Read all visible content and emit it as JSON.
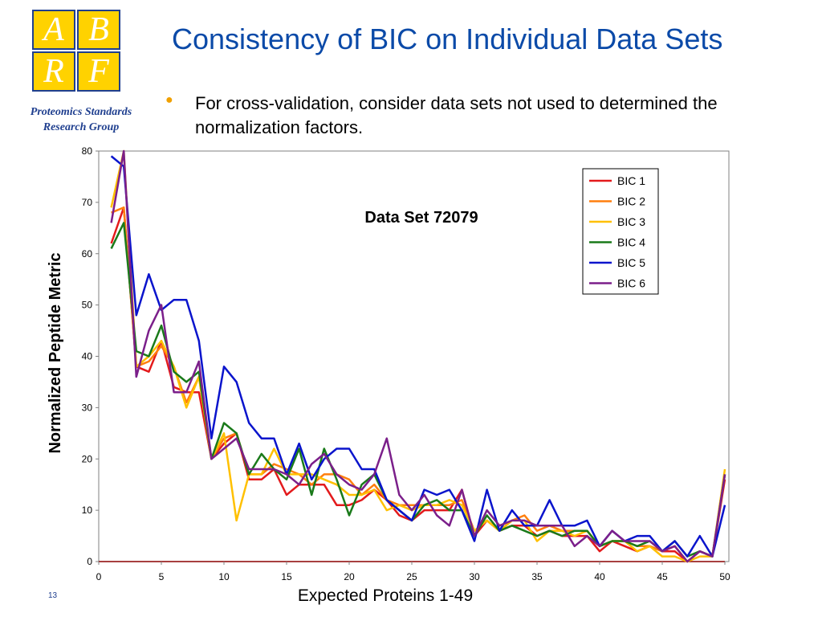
{
  "slide": {
    "title": "Consistency of BIC on Individual Data Sets",
    "bullet": "For cross-validation, consider data sets not used to determined the normalization factors.",
    "logo": {
      "letters": [
        "A",
        "B",
        "R",
        "F"
      ],
      "subtitle_line1": "Proteomics Standards",
      "subtitle_line2": "Research Group"
    },
    "slide_number": "13"
  },
  "chart_data": {
    "type": "line",
    "title": "Data Set 72079",
    "xlabel": "Expected Proteins 1-49",
    "ylabel": "Normalized Peptide Metric",
    "xlim": [
      0,
      50
    ],
    "ylim": [
      0,
      80
    ],
    "xticks": [
      0,
      5,
      10,
      15,
      20,
      25,
      30,
      35,
      40,
      45,
      50
    ],
    "yticks": [
      0,
      10,
      20,
      30,
      40,
      50,
      60,
      70,
      80
    ],
    "grid": false,
    "legend_position": "top-right",
    "x": [
      1,
      2,
      3,
      4,
      5,
      6,
      7,
      8,
      9,
      10,
      11,
      12,
      13,
      14,
      15,
      16,
      17,
      18,
      19,
      20,
      21,
      22,
      23,
      24,
      25,
      26,
      27,
      28,
      29,
      30,
      31,
      32,
      33,
      34,
      35,
      36,
      37,
      38,
      39,
      40,
      41,
      42,
      43,
      44,
      45,
      46,
      47,
      48,
      49,
      50
    ],
    "series": [
      {
        "name": "BIC 1",
        "color": "#e31a1c",
        "values": [
          62,
          69,
          38,
          37,
          43,
          34,
          33,
          33,
          20,
          23,
          25,
          16,
          16,
          18,
          13,
          15,
          15,
          15,
          11,
          11,
          12,
          14,
          12,
          9,
          8,
          10,
          10,
          10,
          14,
          5,
          8,
          6,
          7,
          7,
          5,
          6,
          5,
          5,
          5,
          2,
          4,
          3,
          2,
          3,
          2,
          2,
          0,
          2,
          1,
          16
        ]
      },
      {
        "name": "BIC 2",
        "color": "#ff7f0e",
        "values": [
          68,
          69,
          38,
          39,
          42,
          38,
          31,
          36,
          20,
          24,
          25,
          17,
          17,
          19,
          18,
          17,
          15,
          17,
          17,
          16,
          13,
          15,
          12,
          11,
          11,
          11,
          11,
          11,
          12,
          6,
          8,
          6,
          8,
          9,
          6,
          7,
          6,
          6,
          6,
          3,
          4,
          4,
          3,
          3,
          2,
          3,
          0,
          2,
          1,
          17
        ]
      },
      {
        "name": "BIC 3",
        "color": "#ffc000",
        "values": [
          69,
          80,
          38,
          40,
          43,
          38,
          30,
          36,
          20,
          25,
          8,
          17,
          17,
          22,
          17,
          17,
          17,
          16,
          15,
          13,
          13,
          14,
          10,
          11,
          10,
          11,
          11,
          12,
          11,
          6,
          8,
          6,
          8,
          8,
          4,
          6,
          6,
          5,
          6,
          3,
          4,
          4,
          2,
          3,
          1,
          1,
          0,
          1,
          1,
          18
        ]
      },
      {
        "name": "BIC 4",
        "color": "#1a7a1a",
        "values": [
          61,
          66,
          41,
          40,
          46,
          37,
          35,
          37,
          20,
          27,
          25,
          17,
          21,
          18,
          16,
          22,
          13,
          22,
          16,
          9,
          15,
          17,
          12,
          10,
          8,
          11,
          12,
          10,
          10,
          5,
          9,
          6,
          7,
          6,
          5,
          6,
          5,
          6,
          6,
          3,
          4,
          4,
          3,
          4,
          2,
          4,
          1,
          2,
          1,
          17
        ]
      },
      {
        "name": "BIC 5",
        "color": "#0a14cc",
        "values": [
          79,
          77,
          48,
          56,
          49,
          51,
          51,
          43,
          24,
          38,
          35,
          27,
          24,
          24,
          17,
          23,
          16,
          20,
          22,
          22,
          18,
          18,
          12,
          10,
          8,
          14,
          13,
          14,
          10,
          4,
          14,
          6,
          10,
          7,
          7,
          12,
          7,
          7,
          8,
          3,
          6,
          4,
          5,
          5,
          2,
          4,
          1,
          5,
          1,
          11
        ]
      },
      {
        "name": "BIC 6",
        "color": "#7b1f8a",
        "values": [
          66,
          80,
          36,
          45,
          50,
          33,
          33,
          39,
          20,
          22,
          24,
          18,
          18,
          18,
          17,
          15,
          19,
          21,
          17,
          15,
          14,
          17,
          24,
          13,
          10,
          13,
          9,
          7,
          14,
          5,
          10,
          7,
          8,
          8,
          7,
          7,
          7,
          3,
          5,
          3,
          6,
          4,
          4,
          4,
          2,
          3,
          0,
          2,
          1,
          17
        ]
      }
    ]
  }
}
